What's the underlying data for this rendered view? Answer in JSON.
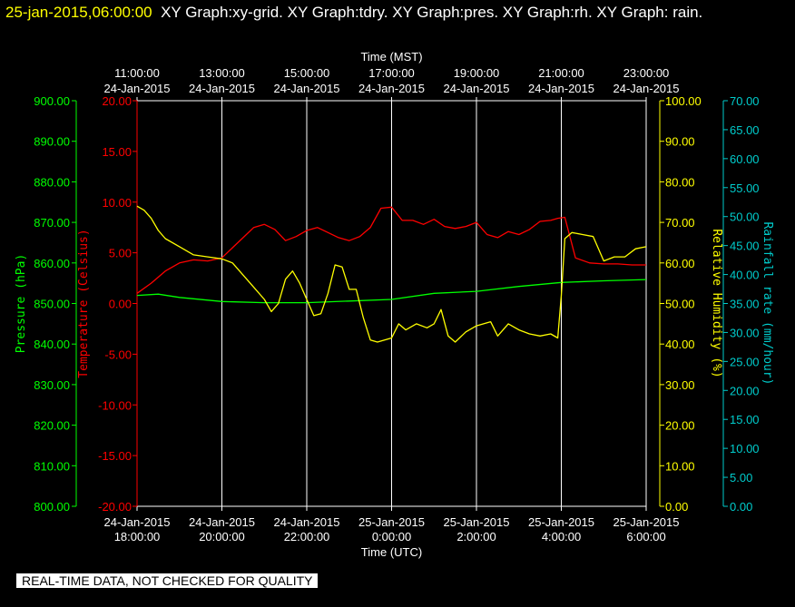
{
  "header": {
    "timestamp": "25-jan-2015,06:00:00",
    "graphs_text": "XY Graph:xy-grid.  XY Graph:tdry.  XY Graph:pres.  XY Graph:rh.  XY Graph: rain."
  },
  "footer": {
    "note": "REAL-TIME DATA, NOT CHECKED FOR QUALITY"
  },
  "colors": {
    "background": "#000000",
    "grid": "#ffffff",
    "temperature": "#ff0000",
    "pressure": "#00ff00",
    "humidity": "#ffff00",
    "rainfall": "#00cccc"
  },
  "chart_data": {
    "type": "line",
    "grid": true,
    "xlabel_top": "Time (MST)",
    "xlabel_bottom": "Time (UTC)",
    "x_top_ticks": [
      {
        "time": "11:00:00",
        "date": "24-Jan-2015"
      },
      {
        "time": "13:00:00",
        "date": "24-Jan-2015"
      },
      {
        "time": "15:00:00",
        "date": "24-Jan-2015"
      },
      {
        "time": "17:00:00",
        "date": "24-Jan-2015"
      },
      {
        "time": "19:00:00",
        "date": "24-Jan-2015"
      },
      {
        "time": "21:00:00",
        "date": "24-Jan-2015"
      },
      {
        "time": "23:00:00",
        "date": "24-Jan-2015"
      }
    ],
    "x_bottom_ticks": [
      {
        "date": "24-Jan-2015",
        "time": "18:00:00"
      },
      {
        "date": "24-Jan-2015",
        "time": "20:00:00"
      },
      {
        "date": "24-Jan-2015",
        "time": "22:00:00"
      },
      {
        "date": "25-Jan-2015",
        "time": "0:00:00"
      },
      {
        "date": "25-Jan-2015",
        "time": "2:00:00"
      },
      {
        "date": "25-Jan-2015",
        "time": "4:00:00"
      },
      {
        "date": "25-Jan-2015",
        "time": "6:00:00"
      }
    ],
    "xlim_utc": [
      "24-Jan-2015 18:00:00",
      "25-Jan-2015 06:00:00"
    ],
    "axes": {
      "pressure": {
        "label": "Pressure (hPa)",
        "range": [
          800,
          900
        ],
        "ticks": [
          "900.00",
          "890.00",
          "880.00",
          "870.00",
          "860.00",
          "850.00",
          "840.00",
          "830.00",
          "820.00",
          "810.00",
          "800.00"
        ]
      },
      "temperature": {
        "label": "Temperature (Celsius)",
        "range": [
          -20,
          20
        ],
        "ticks": [
          "20.00",
          "15.00",
          "10.00",
          "5.00",
          "0.00",
          "-5.00",
          "-10.00",
          "-15.00",
          "-20.00"
        ]
      },
      "humidity": {
        "label": "Relative Humidity (%)",
        "range": [
          0,
          100
        ],
        "ticks": [
          "100.00",
          "90.00",
          "80.00",
          "70.00",
          "60.00",
          "50.00",
          "40.00",
          "30.00",
          "20.00",
          "10.00",
          "0.00"
        ]
      },
      "rainfall": {
        "label": "Rainfall rate (mm/hour)",
        "range": [
          0,
          70
        ],
        "ticks": [
          "70.00",
          "65.00",
          "60.00",
          "55.00",
          "50.00",
          "45.00",
          "40.00",
          "35.00",
          "30.00",
          "25.00",
          "20.00",
          "15.00",
          "10.00",
          "5.00",
          "0.00"
        ]
      }
    },
    "series": [
      {
        "name": "Temperature (Celsius)",
        "axis": "temperature",
        "key": "temperature",
        "x": [
          "24-Jan-2015 18:00",
          "24-Jan-2015 18:20",
          "24-Jan-2015 18:40",
          "24-Jan-2015 19:00",
          "24-Jan-2015 19:20",
          "24-Jan-2015 19:40",
          "24-Jan-2015 20:00",
          "24-Jan-2015 20:15",
          "24-Jan-2015 20:30",
          "24-Jan-2015 20:45",
          "24-Jan-2015 21:00",
          "24-Jan-2015 21:15",
          "24-Jan-2015 21:30",
          "24-Jan-2015 21:45",
          "24-Jan-2015 22:00",
          "24-Jan-2015 22:15",
          "24-Jan-2015 22:30",
          "24-Jan-2015 22:45",
          "24-Jan-2015 23:00",
          "24-Jan-2015 23:15",
          "24-Jan-2015 23:30",
          "24-Jan-2015 23:45",
          "25-Jan-2015 0:00",
          "25-Jan-2015 0:15",
          "25-Jan-2015 0:30",
          "25-Jan-2015 0:45",
          "25-Jan-2015 1:00",
          "25-Jan-2015 1:15",
          "25-Jan-2015 1:30",
          "25-Jan-2015 1:45",
          "25-Jan-2015 2:00",
          "25-Jan-2015 2:15",
          "25-Jan-2015 2:30",
          "25-Jan-2015 2:45",
          "25-Jan-2015 3:00",
          "25-Jan-2015 3:15",
          "25-Jan-2015 3:30",
          "25-Jan-2015 3:45",
          "25-Jan-2015 3:55",
          "25-Jan-2015 4:05",
          "25-Jan-2015 4:20",
          "25-Jan-2015 4:40",
          "25-Jan-2015 5:00",
          "25-Jan-2015 5:20",
          "25-Jan-2015 5:40",
          "25-Jan-2015 6:00"
        ],
        "values": [
          1.0,
          2.0,
          3.2,
          4.0,
          4.3,
          4.2,
          4.5,
          5.5,
          6.5,
          7.5,
          7.8,
          7.3,
          6.2,
          6.6,
          7.2,
          7.5,
          7.0,
          6.5,
          6.2,
          6.6,
          7.5,
          9.4,
          9.5,
          8.2,
          8.2,
          7.8,
          8.3,
          7.6,
          7.4,
          7.6,
          8.0,
          6.8,
          6.5,
          7.1,
          6.8,
          7.3,
          8.1,
          8.2,
          8.4,
          8.5,
          4.5,
          4.0,
          3.9,
          3.9,
          3.8,
          3.8
        ]
      },
      {
        "name": "Pressure (hPa)",
        "axis": "pressure",
        "key": "pressure",
        "x": [
          "24-Jan-2015 18:00",
          "24-Jan-2015 18:30",
          "24-Jan-2015 19:00",
          "24-Jan-2015 20:00",
          "24-Jan-2015 21:00",
          "24-Jan-2015 22:00",
          "24-Jan-2015 23:00",
          "25-Jan-2015 0:00",
          "25-Jan-2015 1:00",
          "25-Jan-2015 2:00",
          "25-Jan-2015 3:00",
          "25-Jan-2015 4:00",
          "25-Jan-2015 5:00",
          "25-Jan-2015 6:00"
        ],
        "values": [
          852.0,
          852.3,
          851.5,
          850.5,
          850.2,
          850.2,
          850.6,
          851.0,
          852.5,
          853.0,
          854.2,
          855.2,
          855.6,
          855.9
        ]
      },
      {
        "name": "Relative Humidity (%)",
        "axis": "humidity",
        "key": "humidity",
        "x": [
          "24-Jan-2015 18:00",
          "24-Jan-2015 18:10",
          "24-Jan-2015 18:20",
          "24-Jan-2015 18:30",
          "24-Jan-2015 18:40",
          "24-Jan-2015 19:00",
          "24-Jan-2015 19:20",
          "24-Jan-2015 19:40",
          "24-Jan-2015 20:00",
          "24-Jan-2015 20:15",
          "24-Jan-2015 20:30",
          "24-Jan-2015 20:45",
          "24-Jan-2015 21:00",
          "24-Jan-2015 21:10",
          "24-Jan-2015 21:20",
          "24-Jan-2015 21:30",
          "24-Jan-2015 21:40",
          "24-Jan-2015 21:50",
          "24-Jan-2015 22:00",
          "24-Jan-2015 22:10",
          "24-Jan-2015 22:20",
          "24-Jan-2015 22:30",
          "24-Jan-2015 22:40",
          "24-Jan-2015 22:50",
          "24-Jan-2015 23:00",
          "24-Jan-2015 23:10",
          "24-Jan-2015 23:20",
          "24-Jan-2015 23:30",
          "24-Jan-2015 23:40",
          "24-Jan-2015 23:50",
          "25-Jan-2015 0:00",
          "25-Jan-2015 0:10",
          "25-Jan-2015 0:20",
          "25-Jan-2015 0:35",
          "25-Jan-2015 0:50",
          "25-Jan-2015 1:00",
          "25-Jan-2015 1:10",
          "25-Jan-2015 1:20",
          "25-Jan-2015 1:30",
          "25-Jan-2015 1:45",
          "25-Jan-2015 2:00",
          "25-Jan-2015 2:10",
          "25-Jan-2015 2:20",
          "25-Jan-2015 2:30",
          "25-Jan-2015 2:45",
          "25-Jan-2015 3:00",
          "25-Jan-2015 3:15",
          "25-Jan-2015 3:30",
          "25-Jan-2015 3:45",
          "25-Jan-2015 3:55",
          "25-Jan-2015 4:00",
          "25-Jan-2015 4:05",
          "25-Jan-2015 4:15",
          "25-Jan-2015 4:30",
          "25-Jan-2015 4:45",
          "25-Jan-2015 5:00",
          "25-Jan-2015 5:15",
          "25-Jan-2015 5:30",
          "25-Jan-2015 5:45",
          "25-Jan-2015 6:00"
        ],
        "values": [
          74.0,
          73.0,
          71.0,
          68.0,
          66.0,
          64.0,
          62.0,
          61.5,
          61.0,
          60.0,
          57.0,
          54.0,
          51.0,
          48.0,
          50.0,
          56.0,
          58.0,
          55.0,
          51.0,
          47.0,
          47.5,
          52.5,
          59.5,
          59.0,
          53.5,
          53.5,
          46.5,
          41.0,
          40.5,
          41.0,
          41.5,
          45.0,
          43.5,
          45.0,
          44.0,
          45.0,
          48.5,
          42.0,
          40.5,
          43.0,
          44.5,
          45.0,
          45.5,
          42.0,
          45.0,
          43.5,
          42.5,
          42.0,
          42.5,
          41.5,
          52.0,
          66.0,
          67.5,
          67.0,
          66.5,
          60.5,
          61.5,
          61.5,
          63.5,
          64.0
        ]
      }
    ]
  }
}
